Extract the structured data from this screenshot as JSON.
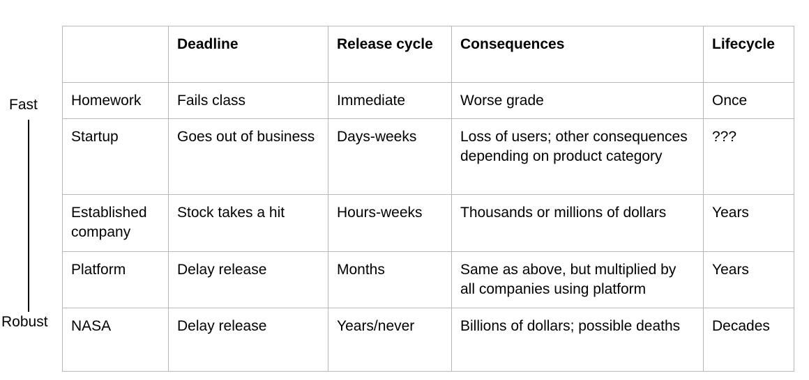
{
  "axis": {
    "top_label": "Fast",
    "bottom_label": "Robust"
  },
  "table": {
    "headers": [
      "",
      "Deadline",
      "Release cycle",
      "Consequences",
      "Lifecycle"
    ],
    "rows": [
      [
        "Homework",
        "Fails class",
        "Immediate",
        "Worse grade",
        "Once"
      ],
      [
        "Startup",
        "Goes out of business",
        "Days-weeks",
        "Loss of users; other consequences depending on product category",
        "???"
      ],
      [
        "Established company",
        "Stock takes a hit",
        "Hours-weeks",
        "Thousands or millions of dollars",
        "Years"
      ],
      [
        "Platform",
        "Delay release",
        "Months",
        "Same as above, but multiplied by all companies using platform",
        "Years"
      ],
      [
        "NASA",
        "Delay release",
        "Years/never",
        "Billions of dollars; possible deaths",
        "Decades"
      ]
    ]
  },
  "colors": {
    "grid_border": "#b7b7b7",
    "text": "#000000",
    "background": "#ffffff"
  }
}
